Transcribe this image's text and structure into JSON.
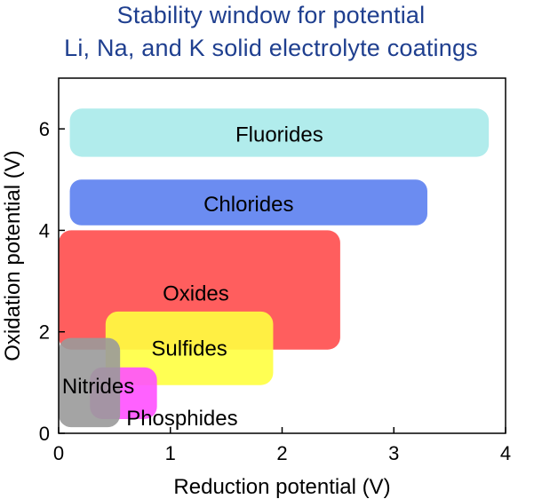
{
  "chart_data": {
    "type": "box",
    "title": "Stability window for potential",
    "subtitle": "Li, Na, and K solid electrolyte coatings",
    "xlabel": "Reduction potential (V)",
    "ylabel": "Oxidation potential (V)",
    "xlim": [
      0,
      4
    ],
    "ylim": [
      0,
      7
    ],
    "xticks": [
      0,
      1,
      2,
      3,
      4
    ],
    "yticks": [
      0,
      2,
      4,
      6
    ],
    "regions": [
      {
        "name": "Fluorides",
        "x0": 0.1,
        "x1": 3.85,
        "y0": 5.45,
        "y1": 6.4,
        "color": "#a9eaea"
      },
      {
        "name": "Chlorides",
        "x0": 0.1,
        "x1": 3.3,
        "y0": 4.1,
        "y1": 5.0,
        "color": "#5b80f0"
      },
      {
        "name": "Oxides",
        "x0": 0.0,
        "x1": 2.52,
        "y0": 1.65,
        "y1": 4.0,
        "color": "#ff4c4c"
      },
      {
        "name": "Sulfides",
        "x0": 0.42,
        "x1": 1.92,
        "y0": 0.95,
        "y1": 2.4,
        "color": "#ffff40"
      },
      {
        "name": "Phosphides",
        "x0": 0.28,
        "x1": 0.88,
        "y0": 0.28,
        "y1": 1.3,
        "color": "#ff50ff"
      },
      {
        "name": "Nitrides",
        "x0": 0.0,
        "x1": 0.55,
        "y0": 0.12,
        "y1": 1.88,
        "color": "#9a9a9a"
      }
    ]
  }
}
